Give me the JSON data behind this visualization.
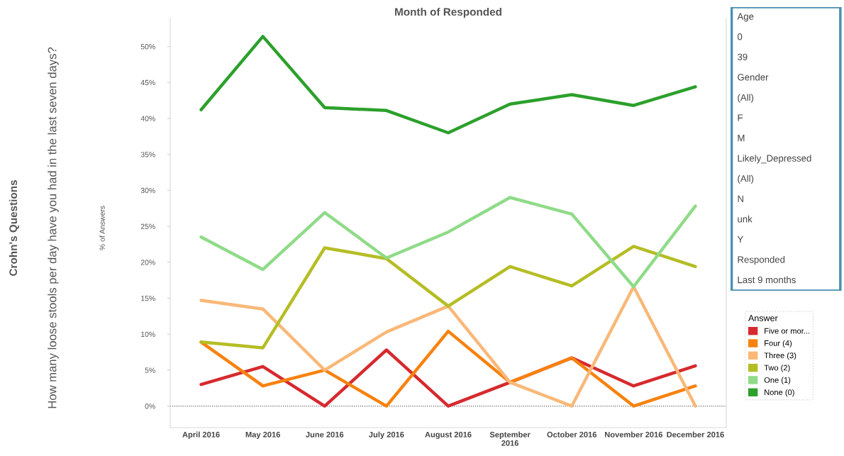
{
  "chart_data": [
    {
      "type": "line",
      "title": "Month of Responded",
      "ylabel": "% of Answers",
      "legend_title": "Answer",
      "legend": "right",
      "grid": false,
      "marker": "none",
      "line_style": "solid",
      "annotations": [
        "Crohn's Questions",
        "How many loose stools per day have you had in the last seven days?"
      ],
      "categories": [
        "April 2016",
        "May 2016",
        "June 2016",
        "July 2016",
        "August 2016",
        "September 2016",
        "October 2016",
        "November 2016",
        "December 2016"
      ],
      "ylim": [
        -3,
        54
      ],
      "yticks": [
        {
          "value": 0,
          "label": "0%"
        },
        {
          "value": 5,
          "label": "5%"
        },
        {
          "value": 10,
          "label": "10%"
        },
        {
          "value": 15,
          "label": "15%"
        },
        {
          "value": 20,
          "label": "20%"
        },
        {
          "value": 25,
          "label": "25%"
        },
        {
          "value": 30,
          "label": "30%"
        },
        {
          "value": 35,
          "label": "35%"
        },
        {
          "value": 40,
          "label": "40%"
        },
        {
          "value": 45,
          "label": "45%"
        },
        {
          "value": 50,
          "label": "50%"
        }
      ],
      "ref_lines": [
        {
          "axis": "y",
          "value": 0,
          "color": "#555555",
          "line_style": "dotted"
        }
      ],
      "series": [
        {
          "name": "Five or mor...",
          "color": "#d62a2e",
          "values": [
            3.0,
            5.5,
            0,
            7.8,
            0,
            3.3,
            6.7,
            2.8,
            5.6
          ]
        },
        {
          "name": "Four (4)",
          "color": "#f7820f",
          "values": [
            8.9,
            2.8,
            5.0,
            0,
            10.4,
            3.3,
            6.7,
            0,
            2.8
          ]
        },
        {
          "name": "Three (3)",
          "color": "#f9b878",
          "values": [
            14.7,
            13.5,
            5.0,
            10.3,
            13.9,
            3.3,
            0,
            16.6,
            0
          ]
        },
        {
          "name": "Two (2)",
          "color": "#b5bd25",
          "values": [
            8.9,
            8.1,
            22.0,
            20.5,
            13.9,
            19.4,
            16.7,
            22.2,
            19.4
          ]
        },
        {
          "name": "One (1)",
          "color": "#8fdb88",
          "values": [
            23.5,
            19.0,
            26.9,
            20.6,
            24.2,
            29.0,
            26.7,
            16.6,
            27.8
          ]
        },
        {
          "name": "None (0)",
          "color": "#2ca02c",
          "values": [
            41.2,
            51.4,
            41.5,
            41.1,
            38.0,
            42.0,
            43.3,
            41.8,
            44.4
          ]
        }
      ]
    },
    {
      "type": "other",
      "annotations": [
        "Age",
        "0",
        "39",
        "Gender",
        "(All)",
        "F",
        "M",
        "Likely_Depressed",
        "(All)",
        "N",
        "unk",
        "Y",
        "Responded",
        "Last 9 months"
      ]
    }
  ]
}
